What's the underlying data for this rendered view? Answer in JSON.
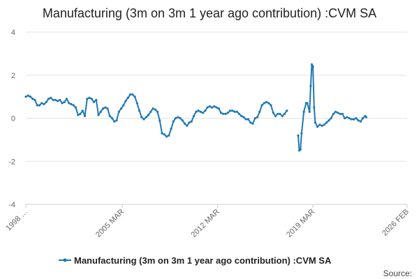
{
  "chart_data": {
    "type": "line",
    "title": "Manufacturing (3m on 3m 1 year ago contribution) :CVM SA",
    "xlabel": "",
    "ylabel": "",
    "ylim": [
      -4,
      4
    ],
    "yticks": [
      4,
      2,
      0,
      -2,
      -4
    ],
    "xticks": [
      {
        "label": "1998 …",
        "t": 0
      },
      {
        "label": "2005 MAR",
        "t": 85
      },
      {
        "label": "2012 MAR",
        "t": 169
      },
      {
        "label": "2019 MAR",
        "t": 253
      },
      {
        "label": "2026 FEB",
        "t": 336
      }
    ],
    "t_range": [
      0,
      336
    ],
    "series": [
      {
        "name": "Manufacturing (3m on 3m 1 year ago contribution) :CVM SA",
        "color": "#1f78b4",
        "segments": [
          [
            [
              0,
              1.0
            ],
            [
              2,
              1.05
            ],
            [
              4,
              1.0
            ],
            [
              6,
              0.9
            ],
            [
              8,
              0.85
            ],
            [
              10,
              0.6
            ],
            [
              12,
              0.6
            ],
            [
              14,
              0.7
            ],
            [
              16,
              0.65
            ],
            [
              18,
              0.75
            ],
            [
              20,
              0.9
            ],
            [
              22,
              0.95
            ],
            [
              24,
              0.85
            ],
            [
              26,
              0.85
            ],
            [
              28,
              0.8
            ],
            [
              30,
              0.85
            ],
            [
              32,
              0.7
            ],
            [
              34,
              0.75
            ],
            [
              36,
              0.9
            ],
            [
              38,
              0.7
            ],
            [
              40,
              0.65
            ],
            [
              42,
              0.6
            ],
            [
              44,
              0.5
            ],
            [
              46,
              0.15
            ],
            [
              48,
              0.2
            ],
            [
              50,
              0.35
            ],
            [
              52,
              0.1
            ],
            [
              54,
              0.9
            ],
            [
              56,
              0.95
            ],
            [
              58,
              0.9
            ],
            [
              60,
              0.75
            ],
            [
              62,
              0.85
            ],
            [
              64,
              0.15
            ],
            [
              66,
              0.3
            ],
            [
              68,
              0.45
            ],
            [
              70,
              0.5
            ],
            [
              72,
              0.45
            ],
            [
              74,
              0.1
            ],
            [
              76,
              0.0
            ],
            [
              78,
              -0.15
            ],
            [
              80,
              -0.1
            ],
            [
              82,
              0.3
            ],
            [
              84,
              0.45
            ],
            [
              86,
              0.6
            ],
            [
              88,
              0.8
            ],
            [
              90,
              0.95
            ],
            [
              92,
              1.1
            ],
            [
              94,
              1.1
            ],
            [
              96,
              1.0
            ],
            [
              98,
              0.7
            ],
            [
              100,
              0.35
            ],
            [
              102,
              0.05
            ],
            [
              104,
              -0.05
            ],
            [
              106,
              0.05
            ],
            [
              108,
              0.15
            ],
            [
              110,
              0.3
            ],
            [
              112,
              0.45
            ],
            [
              114,
              0.4
            ],
            [
              116,
              0.3
            ],
            [
              118,
              -0.1
            ],
            [
              120,
              -0.7
            ],
            [
              122,
              -0.75
            ],
            [
              124,
              -0.85
            ],
            [
              126,
              -0.8
            ],
            [
              128,
              -0.5
            ],
            [
              130,
              -0.15
            ],
            [
              132,
              0.0
            ],
            [
              134,
              0.05
            ],
            [
              136,
              0.0
            ],
            [
              138,
              -0.1
            ],
            [
              140,
              -0.25
            ],
            [
              142,
              -0.35
            ],
            [
              144,
              -0.2
            ],
            [
              146,
              -0.15
            ],
            [
              148,
              0.1
            ],
            [
              150,
              0.3
            ],
            [
              152,
              0.35
            ],
            [
              154,
              0.3
            ],
            [
              156,
              0.25
            ],
            [
              158,
              0.35
            ],
            [
              160,
              0.5
            ],
            [
              162,
              0.55
            ],
            [
              164,
              0.5
            ],
            [
              166,
              0.55
            ],
            [
              168,
              0.5
            ],
            [
              170,
              0.45
            ],
            [
              172,
              0.25
            ],
            [
              174,
              0.2
            ],
            [
              176,
              0.2
            ],
            [
              178,
              0.25
            ],
            [
              180,
              0.35
            ],
            [
              182,
              0.35
            ],
            [
              184,
              0.3
            ],
            [
              186,
              0.3
            ],
            [
              188,
              0.2
            ],
            [
              190,
              0.1
            ],
            [
              192,
              0.05
            ],
            [
              194,
              -0.05
            ],
            [
              196,
              -0.05
            ],
            [
              198,
              -0.2
            ],
            [
              200,
              -0.25
            ],
            [
              202,
              0.0
            ],
            [
              204,
              0.05
            ],
            [
              206,
              0.3
            ],
            [
              208,
              0.6
            ],
            [
              210,
              0.7
            ],
            [
              212,
              0.75
            ],
            [
              214,
              0.7
            ],
            [
              216,
              0.6
            ],
            [
              218,
              0.25
            ],
            [
              220,
              0.1
            ],
            [
              222,
              0.2
            ],
            [
              224,
              0.2
            ],
            [
              226,
              0.1
            ],
            [
              228,
              0.2
            ],
            [
              230,
              0.35
            ]
          ],
          [
            [
              240,
              -0.8
            ],
            [
              241,
              -1.5
            ],
            [
              242,
              -1.45
            ],
            [
              243,
              -0.7
            ],
            [
              245,
              0.3
            ],
            [
              247,
              0.7
            ],
            [
              248,
              0.7
            ],
            [
              250,
              0.3
            ],
            [
              251,
              1.5
            ],
            [
              252,
              2.5
            ],
            [
              253,
              2.4
            ],
            [
              254,
              0.5
            ],
            [
              255,
              -0.2
            ],
            [
              257,
              -0.4
            ],
            [
              259,
              -0.3
            ],
            [
              261,
              -0.35
            ],
            [
              263,
              -0.3
            ],
            [
              265,
              -0.2
            ],
            [
              267,
              -0.1
            ],
            [
              269,
              0.0
            ],
            [
              271,
              0.2
            ],
            [
              273,
              0.3
            ],
            [
              275,
              0.25
            ],
            [
              277,
              0.2
            ],
            [
              279,
              0.2
            ],
            [
              281,
              0.0
            ],
            [
              283,
              0.05
            ],
            [
              285,
              0.0
            ],
            [
              287,
              -0.05
            ],
            [
              289,
              -0.05
            ],
            [
              291,
              0.0
            ],
            [
              293,
              -0.1
            ],
            [
              295,
              -0.15
            ],
            [
              297,
              0.0
            ],
            [
              299,
              0.1
            ],
            [
              300,
              0.05
            ]
          ]
        ]
      }
    ],
    "legend": {
      "label": "Manufacturing (3m on 3m 1 year ago contribution) :CVM SA",
      "position": "bottom-center"
    },
    "source_label": "Source:",
    "grid": true
  }
}
